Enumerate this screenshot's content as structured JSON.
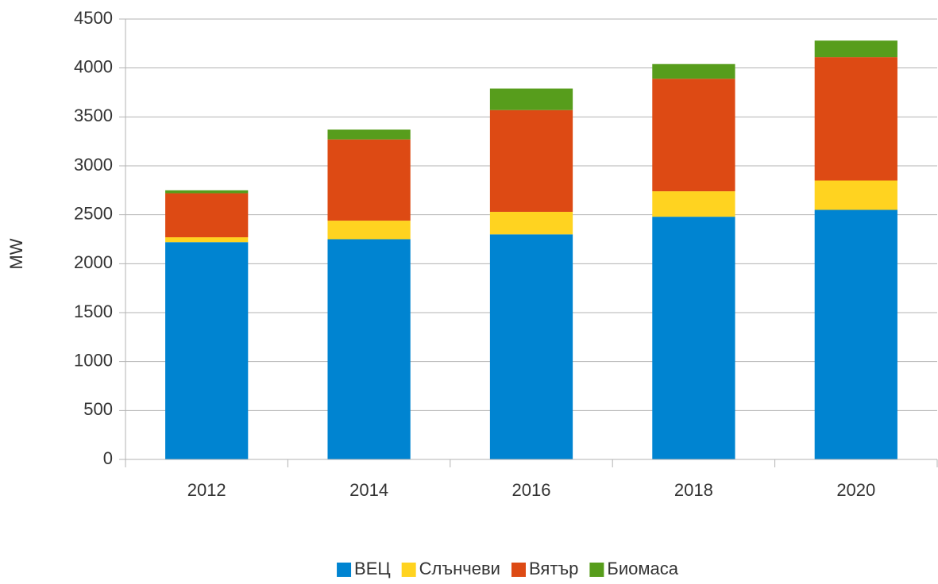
{
  "chart_data": {
    "type": "stacked_bar",
    "y_label": "MW",
    "categories": [
      "2012",
      "2014",
      "2016",
      "2018",
      "2020"
    ],
    "series": [
      {
        "name": "ВЕЦ",
        "color": "#0084d1",
        "values": [
          2220,
          2250,
          2300,
          2480,
          2550
        ]
      },
      {
        "name": "Слънчеви",
        "color": "#ffd320",
        "values": [
          50,
          190,
          230,
          260,
          300
        ]
      },
      {
        "name": "Вятър",
        "color": "#dd4a14",
        "values": [
          450,
          830,
          1040,
          1150,
          1260
        ]
      },
      {
        "name": "Биомаса",
        "color": "#579d1c",
        "values": [
          30,
          100,
          220,
          150,
          170
        ]
      }
    ],
    "ylim": [
      0,
      4500
    ],
    "yticks": [
      0,
      500,
      1000,
      1500,
      2000,
      2500,
      3000,
      3500,
      4000,
      4500
    ],
    "grid": true,
    "legend": "bottom"
  }
}
